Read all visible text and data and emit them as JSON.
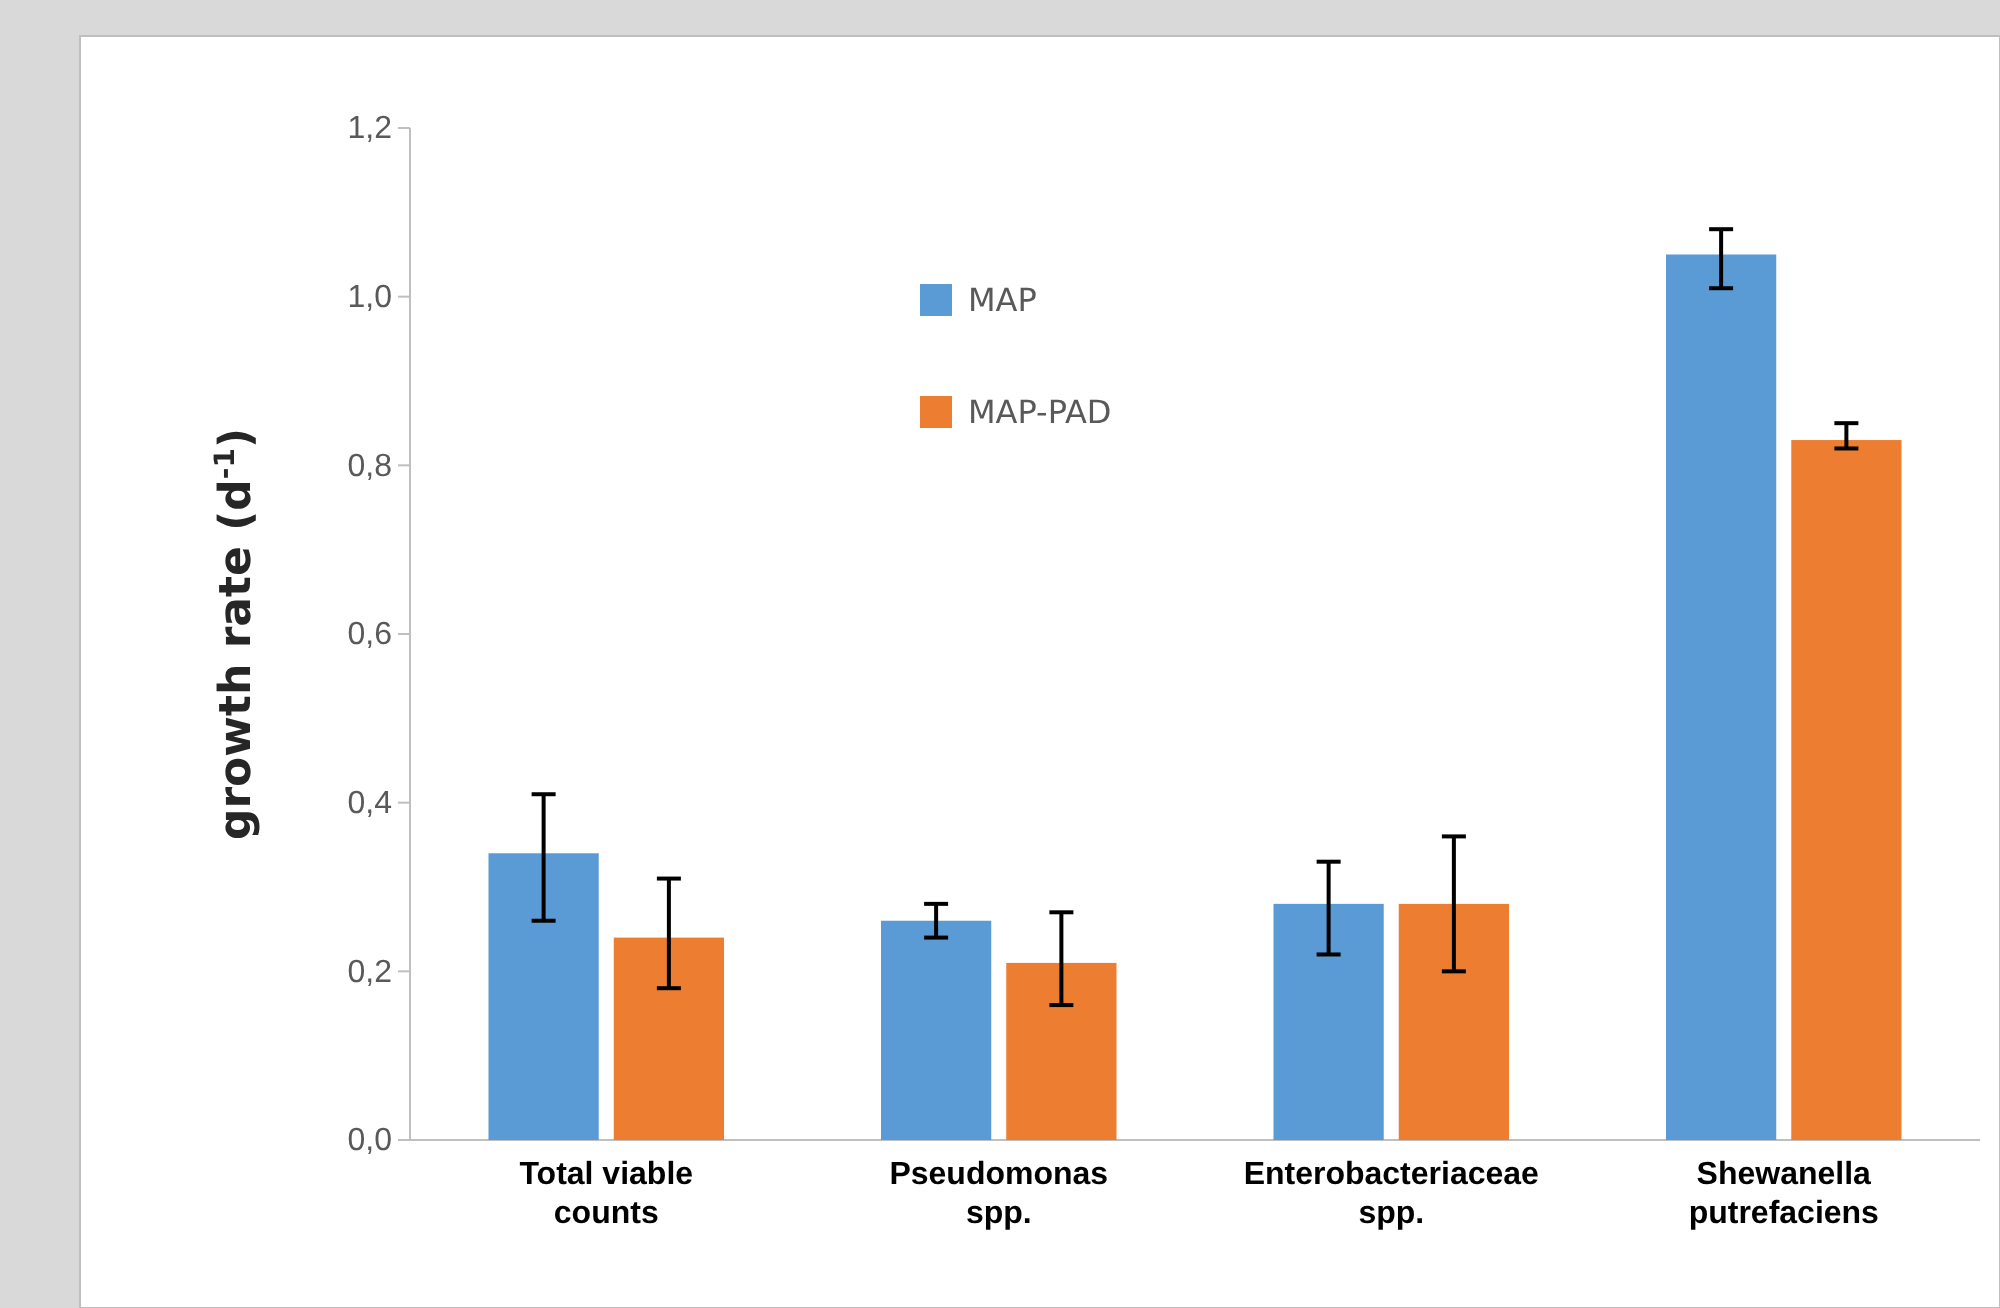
{
  "chart_data": {
    "type": "bar",
    "ylabel": "growth rate (d$^{-1}$)",
    "categories": [
      "Total viable counts",
      "Pseudomonas spp.",
      "Enterobacteriaceae spp.",
      "Shewanella putrefaciens"
    ],
    "series": [
      {
        "name": "MAP",
        "color": "#5b9bd5",
        "values": [
          0.34,
          0.26,
          0.28,
          1.05
        ],
        "errors": [
          [
            0.26,
            0.41
          ],
          [
            0.24,
            0.28
          ],
          [
            0.22,
            0.33
          ],
          [
            1.01,
            1.08
          ]
        ]
      },
      {
        "name": "MAP-PAD",
        "color": "#ed7d31",
        "values": [
          0.24,
          0.21,
          0.28,
          0.83
        ],
        "errors": [
          [
            0.18,
            0.31
          ],
          [
            0.16,
            0.27
          ],
          [
            0.2,
            0.36
          ],
          [
            0.82,
            0.85
          ]
        ]
      }
    ],
    "ylim": [
      0,
      1.2
    ],
    "yticks": [
      {
        "value": 0,
        "label": "0,0"
      },
      {
        "value": 0.2,
        "label": "0,2"
      },
      {
        "value": 0.4,
        "label": "0,4"
      },
      {
        "value": 0.6,
        "label": "0,6"
      },
      {
        "value": 0.8,
        "label": "0,8"
      },
      {
        "value": 1,
        "label": "1,0"
      },
      {
        "value": 1.2,
        "label": "1,2"
      }
    ],
    "legend": "top left",
    "grid": false
  }
}
